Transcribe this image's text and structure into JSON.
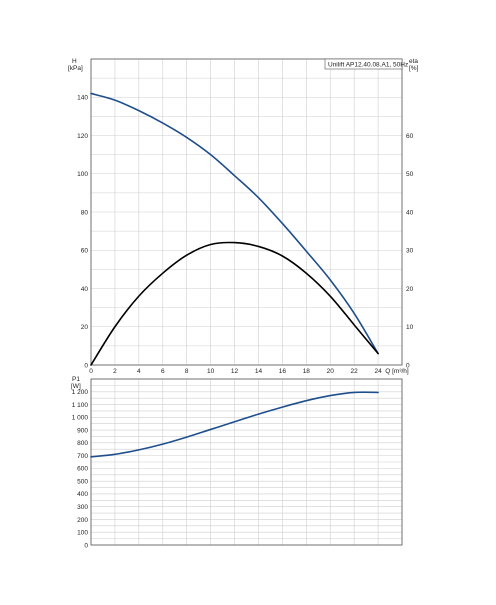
{
  "chart_data": [
    {
      "type": "line",
      "legend": "Unilift AP12.40.08.A1, 50Hz",
      "xlabel": "Q [m³/h]",
      "ylabel_left": [
        "H",
        "[kPa]"
      ],
      "ylabel_right": [
        "eta",
        "[%]"
      ],
      "xlim": [
        0,
        26
      ],
      "ylim_left": [
        0,
        160
      ],
      "ylim_right": [
        0,
        80
      ],
      "x_ticks": [
        "0",
        "2",
        "4",
        "6",
        "8",
        "10",
        "12",
        "14",
        "16",
        "18",
        "20",
        "22",
        "24"
      ],
      "y_ticks_left": [
        "0",
        "20",
        "40",
        "60",
        "80",
        "100",
        "120",
        "140"
      ],
      "y_ticks_right": [
        "0",
        "10",
        "20",
        "30",
        "40",
        "50",
        "60"
      ],
      "grid": true,
      "series": [
        {
          "axis": "left",
          "color": "#1f4e8c",
          "x": [
            0,
            2,
            4,
            6,
            8,
            10,
            12,
            14,
            16,
            18,
            20,
            22,
            24
          ],
          "y": [
            142,
            138.5,
            133,
            126.5,
            119,
            110,
            99,
            87.5,
            74,
            59.5,
            44.5,
            27,
            6
          ]
        },
        {
          "axis": "right",
          "color": "#000000",
          "x": [
            0,
            2,
            4,
            6,
            8,
            10,
            12,
            14,
            16,
            18,
            20,
            22,
            24
          ],
          "y": [
            0,
            10,
            18,
            24,
            28.7,
            31.5,
            32,
            31,
            28.5,
            24,
            18,
            10.5,
            3
          ]
        }
      ]
    },
    {
      "type": "line",
      "ylabel": [
        "P1",
        "[W]"
      ],
      "xlim": [
        0,
        26
      ],
      "ylim": [
        0,
        1300
      ],
      "y_ticks": [
        "0",
        "100",
        "200",
        "300",
        "400",
        "500",
        "600",
        "700",
        "800",
        "900",
        "1 000",
        "1 100",
        "1 200"
      ],
      "grid": true,
      "series": [
        {
          "color": "#1f4e8c",
          "x": [
            0,
            2,
            4,
            6,
            8,
            10,
            12,
            14,
            16,
            18,
            20,
            22,
            24
          ],
          "y": [
            690,
            710,
            745,
            790,
            845,
            905,
            965,
            1025,
            1080,
            1130,
            1170,
            1195,
            1195
          ]
        }
      ]
    }
  ]
}
